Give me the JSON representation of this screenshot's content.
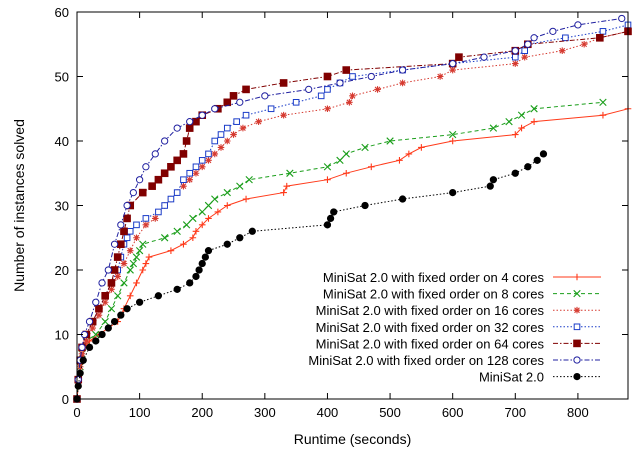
{
  "chart_data": {
    "type": "line",
    "xlabel": "Runtime (seconds)",
    "ylabel": "Number of instances solved",
    "xlim": [
      0,
      880
    ],
    "ylim": [
      0,
      60
    ],
    "x_ticks": [
      "0",
      "100",
      "200",
      "300",
      "400",
      "500",
      "600",
      "700",
      "800"
    ],
    "y_ticks": [
      "0",
      "10",
      "20",
      "30",
      "40",
      "50",
      "60"
    ],
    "grid": false,
    "legend_position": "bottom-right",
    "series": [
      {
        "name": "MiniSat 2.0 with fixed order on 4 cores",
        "color": "#ff3a1a",
        "marker": "plus",
        "dash": "solid",
        "points": [
          [
            0,
            0
          ],
          [
            2,
            2
          ],
          [
            5,
            4
          ],
          [
            8,
            6
          ],
          [
            12,
            8
          ],
          [
            20,
            9
          ],
          [
            35,
            10
          ],
          [
            50,
            11
          ],
          [
            65,
            12
          ],
          [
            75,
            14
          ],
          [
            85,
            16
          ],
          [
            95,
            18
          ],
          [
            105,
            20
          ],
          [
            110,
            21
          ],
          [
            115,
            22
          ],
          [
            150,
            23
          ],
          [
            170,
            24
          ],
          [
            185,
            25
          ],
          [
            190,
            26
          ],
          [
            200,
            27
          ],
          [
            210,
            28
          ],
          [
            225,
            29
          ],
          [
            240,
            30
          ],
          [
            270,
            31
          ],
          [
            330,
            32
          ],
          [
            335,
            33
          ],
          [
            400,
            34
          ],
          [
            430,
            35
          ],
          [
            470,
            36
          ],
          [
            515,
            37
          ],
          [
            530,
            38
          ],
          [
            550,
            39
          ],
          [
            600,
            40
          ],
          [
            700,
            41
          ],
          [
            710,
            42
          ],
          [
            730,
            43
          ],
          [
            840,
            44
          ],
          [
            880,
            45
          ]
        ]
      },
      {
        "name": "MiniSat 2.0 with fixed order on 8 cores",
        "color": "#1a9e1a",
        "marker": "cross",
        "dash": "dashed",
        "points": [
          [
            0,
            0
          ],
          [
            2,
            3
          ],
          [
            5,
            5
          ],
          [
            8,
            7
          ],
          [
            15,
            9
          ],
          [
            30,
            10
          ],
          [
            45,
            12
          ],
          [
            55,
            14
          ],
          [
            65,
            16
          ],
          [
            75,
            18
          ],
          [
            85,
            20
          ],
          [
            90,
            21
          ],
          [
            95,
            22
          ],
          [
            100,
            23
          ],
          [
            105,
            24
          ],
          [
            140,
            25
          ],
          [
            160,
            26
          ],
          [
            175,
            27
          ],
          [
            185,
            28
          ],
          [
            200,
            29
          ],
          [
            210,
            30
          ],
          [
            220,
            31
          ],
          [
            240,
            32
          ],
          [
            260,
            33
          ],
          [
            275,
            34
          ],
          [
            340,
            35
          ],
          [
            400,
            36
          ],
          [
            420,
            37
          ],
          [
            430,
            38
          ],
          [
            460,
            39
          ],
          [
            500,
            40
          ],
          [
            600,
            41
          ],
          [
            665,
            42
          ],
          [
            690,
            43
          ],
          [
            710,
            44
          ],
          [
            730,
            45
          ],
          [
            840,
            46
          ]
        ]
      },
      {
        "name": "MiniSat 2.0 with fixed order on 16 cores",
        "color": "#d63a30",
        "marker": "star",
        "dash": "dotted",
        "points": [
          [
            0,
            0
          ],
          [
            2,
            3
          ],
          [
            5,
            5
          ],
          [
            8,
            7
          ],
          [
            15,
            9
          ],
          [
            25,
            11
          ],
          [
            35,
            13
          ],
          [
            45,
            15
          ],
          [
            55,
            17
          ],
          [
            65,
            19
          ],
          [
            75,
            21
          ],
          [
            85,
            23
          ],
          [
            95,
            25
          ],
          [
            110,
            27
          ],
          [
            125,
            28
          ],
          [
            140,
            30
          ],
          [
            150,
            31
          ],
          [
            160,
            32
          ],
          [
            170,
            33
          ],
          [
            180,
            34
          ],
          [
            190,
            35
          ],
          [
            200,
            36
          ],
          [
            210,
            37
          ],
          [
            220,
            38
          ],
          [
            230,
            39
          ],
          [
            240,
            40
          ],
          [
            250,
            41
          ],
          [
            265,
            42
          ],
          [
            290,
            43
          ],
          [
            330,
            44
          ],
          [
            400,
            45
          ],
          [
            435,
            46
          ],
          [
            440,
            47
          ],
          [
            480,
            48
          ],
          [
            520,
            49
          ],
          [
            580,
            50
          ],
          [
            600,
            51
          ],
          [
            700,
            52
          ],
          [
            715,
            53
          ],
          [
            775,
            54
          ],
          [
            810,
            55
          ],
          [
            835,
            56
          ],
          [
            880,
            57
          ]
        ]
      },
      {
        "name": "MiniSat 2.0 with fixed order on 32 cores",
        "color": "#1a3cc8",
        "marker": "square",
        "dash": "dotted",
        "points": [
          [
            0,
            0
          ],
          [
            2,
            3
          ],
          [
            5,
            6
          ],
          [
            8,
            8
          ],
          [
            15,
            10
          ],
          [
            25,
            12
          ],
          [
            35,
            14
          ],
          [
            45,
            16
          ],
          [
            55,
            18
          ],
          [
            65,
            20
          ],
          [
            70,
            22
          ],
          [
            75,
            24
          ],
          [
            80,
            25
          ],
          [
            85,
            26
          ],
          [
            95,
            27
          ],
          [
            110,
            28
          ],
          [
            130,
            29
          ],
          [
            140,
            30
          ],
          [
            150,
            31
          ],
          [
            160,
            32
          ],
          [
            170,
            34
          ],
          [
            180,
            35
          ],
          [
            190,
            36
          ],
          [
            200,
            37
          ],
          [
            210,
            38
          ],
          [
            220,
            40
          ],
          [
            230,
            41
          ],
          [
            240,
            42
          ],
          [
            255,
            43
          ],
          [
            270,
            44
          ],
          [
            310,
            45
          ],
          [
            350,
            46
          ],
          [
            390,
            47
          ],
          [
            400,
            48
          ],
          [
            420,
            49
          ],
          [
            440,
            50
          ],
          [
            520,
            51
          ],
          [
            600,
            52
          ],
          [
            700,
            53
          ],
          [
            715,
            54
          ],
          [
            720,
            55
          ],
          [
            780,
            56
          ],
          [
            840,
            57
          ],
          [
            880,
            58
          ]
        ]
      },
      {
        "name": "MiniSat 2.0 with fixed order on 64 cores",
        "color": "#800000",
        "marker": "filled-square",
        "dash": "dashdot",
        "points": [
          [
            0,
            0
          ],
          [
            2,
            3
          ],
          [
            5,
            6
          ],
          [
            8,
            8
          ],
          [
            15,
            10
          ],
          [
            25,
            12
          ],
          [
            35,
            14
          ],
          [
            45,
            16
          ],
          [
            55,
            18
          ],
          [
            60,
            20
          ],
          [
            65,
            22
          ],
          [
            70,
            24
          ],
          [
            75,
            26
          ],
          [
            80,
            28
          ],
          [
            85,
            30
          ],
          [
            105,
            32
          ],
          [
            120,
            33
          ],
          [
            130,
            34
          ],
          [
            140,
            35
          ],
          [
            150,
            36
          ],
          [
            160,
            37
          ],
          [
            170,
            38
          ],
          [
            175,
            40
          ],
          [
            180,
            42
          ],
          [
            190,
            43
          ],
          [
            200,
            44
          ],
          [
            225,
            45
          ],
          [
            240,
            46
          ],
          [
            250,
            47
          ],
          [
            270,
            48
          ],
          [
            330,
            49
          ],
          [
            400,
            50
          ],
          [
            430,
            51
          ],
          [
            600,
            52
          ],
          [
            610,
            53
          ],
          [
            700,
            54
          ],
          [
            720,
            55
          ],
          [
            835,
            56
          ],
          [
            880,
            57
          ]
        ]
      },
      {
        "name": "MiniSat 2.0 with fixed order on 128 cores",
        "color": "#2020a0",
        "marker": "circle",
        "dash": "dashdot",
        "points": [
          [
            0,
            0
          ],
          [
            2,
            3
          ],
          [
            5,
            6
          ],
          [
            8,
            8
          ],
          [
            12,
            10
          ],
          [
            20,
            12
          ],
          [
            30,
            15
          ],
          [
            40,
            18
          ],
          [
            50,
            20
          ],
          [
            60,
            24
          ],
          [
            70,
            27
          ],
          [
            80,
            30
          ],
          [
            90,
            32
          ],
          [
            100,
            34
          ],
          [
            110,
            36
          ],
          [
            125,
            38
          ],
          [
            140,
            40
          ],
          [
            160,
            42
          ],
          [
            180,
            43
          ],
          [
            200,
            44
          ],
          [
            220,
            45
          ],
          [
            260,
            46
          ],
          [
            300,
            47
          ],
          [
            370,
            48
          ],
          [
            420,
            49
          ],
          [
            470,
            50
          ],
          [
            520,
            51
          ],
          [
            600,
            52
          ],
          [
            650,
            53
          ],
          [
            700,
            54
          ],
          [
            720,
            55
          ],
          [
            730,
            56
          ],
          [
            760,
            57
          ],
          [
            800,
            58
          ],
          [
            870,
            59
          ]
        ]
      },
      {
        "name": "MiniSat 2.0",
        "color": "#000000",
        "marker": "filled-circle",
        "dash": "dotted",
        "points": [
          [
            0,
            0
          ],
          [
            2,
            2
          ],
          [
            5,
            4
          ],
          [
            10,
            6
          ],
          [
            20,
            8
          ],
          [
            30,
            9
          ],
          [
            40,
            10
          ],
          [
            50,
            11
          ],
          [
            60,
            12
          ],
          [
            70,
            13
          ],
          [
            80,
            14
          ],
          [
            100,
            15
          ],
          [
            130,
            16
          ],
          [
            160,
            17
          ],
          [
            180,
            18
          ],
          [
            190,
            19
          ],
          [
            195,
            20
          ],
          [
            200,
            21
          ],
          [
            205,
            22
          ],
          [
            210,
            23
          ],
          [
            240,
            24
          ],
          [
            260,
            25
          ],
          [
            280,
            26
          ],
          [
            400,
            27
          ],
          [
            405,
            28
          ],
          [
            410,
            29
          ],
          [
            460,
            30
          ],
          [
            520,
            31
          ],
          [
            600,
            32
          ],
          [
            660,
            33
          ],
          [
            665,
            34
          ],
          [
            700,
            35
          ],
          [
            720,
            36
          ],
          [
            735,
            37
          ],
          [
            745,
            38
          ]
        ]
      }
    ]
  }
}
